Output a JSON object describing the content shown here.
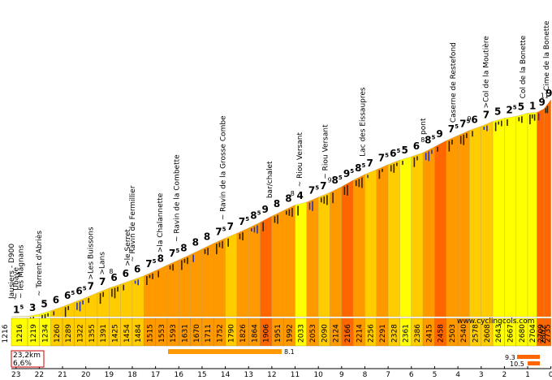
{
  "chart_data": {
    "type": "area",
    "title": "Cime de la Bonette",
    "subtitle": "23,2km 6,6%",
    "summary": {
      "distance_label": "23,2km",
      "avg_grade_label": "6,6%"
    },
    "start_altitude": 1216,
    "end_altitude": 2802,
    "website": "www.cyclingcols.com",
    "x_ticks": [
      23,
      22,
      21,
      20,
      19,
      18,
      17,
      16,
      15,
      14,
      13,
      12,
      11,
      10,
      9,
      8,
      7,
      6,
      5,
      4,
      3,
      2,
      1,
      0
    ],
    "segments": [
      {
        "km": 23.2,
        "alt": 1216,
        "grade": "1.5",
        "color": "#ffff00"
      },
      {
        "km": 22.5,
        "alt": 1219,
        "grade": "3",
        "color": "#ffff00"
      },
      {
        "km": 22.0,
        "alt": 1234,
        "grade": "5",
        "color": "#ffff00"
      },
      {
        "km": 21.5,
        "alt": 1260,
        "grade": "6",
        "color": "#ffcc00"
      },
      {
        "km": 21.0,
        "alt": 1289,
        "grade": "6.5",
        "color": "#ffcc00"
      },
      {
        "km": 20.5,
        "alt": 1322,
        "grade": "6.5",
        "color": "#ffcc00"
      },
      {
        "km": 20.0,
        "alt": 1355,
        "grade": "7",
        "color": "#ffcc00"
      },
      {
        "km": 19.5,
        "alt": 1391,
        "grade": "7",
        "color": "#ffcc00"
      },
      {
        "km": 19.0,
        "alt": 1425,
        "grade": "6",
        "color": "#ffcc00"
      },
      {
        "km": 18.5,
        "alt": 1454,
        "grade": "6",
        "color": "#ffcc00"
      },
      {
        "km": 18.0,
        "alt": 1484,
        "grade": "6",
        "color": "#ffcc00"
      },
      {
        "km": 17.5,
        "alt": 1515,
        "grade": "7.5",
        "color": "#ff9900"
      },
      {
        "km": 17.0,
        "alt": 1553,
        "grade": "8",
        "color": "#ff9900"
      },
      {
        "km": 16.5,
        "alt": 1593,
        "grade": "7.5",
        "color": "#ff9900"
      },
      {
        "km": 16.0,
        "alt": 1631,
        "grade": "8",
        "color": "#ff9900"
      },
      {
        "km": 15.5,
        "alt": 1670,
        "grade": "8",
        "color": "#ff9900"
      },
      {
        "km": 15.0,
        "alt": 1711,
        "grade": "8",
        "color": "#ff9900"
      },
      {
        "km": 14.5,
        "alt": 1752,
        "grade": "7.5",
        "color": "#ff9900"
      },
      {
        "km": 14.0,
        "alt": 1790,
        "grade": "7",
        "color": "#ffcc00"
      },
      {
        "km": 13.5,
        "alt": 1826,
        "grade": "7.5",
        "color": "#ff9900"
      },
      {
        "km": 13.0,
        "alt": 1864,
        "grade": "8.5",
        "color": "#ff9900"
      },
      {
        "km": 12.5,
        "alt": 1906,
        "grade": "9",
        "color": "#ff6600"
      },
      {
        "km": 12.0,
        "alt": 1951,
        "grade": "8",
        "color": "#ff9900"
      },
      {
        "km": 11.5,
        "alt": 1992,
        "grade": "8",
        "color": "#ff9900"
      },
      {
        "km": 11.0,
        "alt": 2033,
        "grade": "4",
        "color": "#ffff00"
      },
      {
        "km": 10.5,
        "alt": 2053,
        "grade": "7.5",
        "color": "#ff9900"
      },
      {
        "km": 10.0,
        "alt": 2090,
        "grade": "7",
        "color": "#ffcc00"
      },
      {
        "km": 9.5,
        "alt": 2124,
        "grade": "8.5",
        "color": "#ff9900"
      },
      {
        "km": 9.0,
        "alt": 2166,
        "grade": "9.5",
        "color": "#ff6600"
      },
      {
        "km": 8.5,
        "alt": 2214,
        "grade": "8.5",
        "color": "#ff9900"
      },
      {
        "km": 8.0,
        "alt": 2256,
        "grade": "7",
        "color": "#ffcc00"
      },
      {
        "km": 7.5,
        "alt": 2291,
        "grade": "7.5",
        "color": "#ff9900"
      },
      {
        "km": 7.0,
        "alt": 2328,
        "grade": "6.5",
        "color": "#ffcc00"
      },
      {
        "km": 6.5,
        "alt": 2361,
        "grade": "5",
        "color": "#ffff00"
      },
      {
        "km": 6.0,
        "alt": 2386,
        "grade": "6",
        "color": "#ffcc00"
      },
      {
        "km": 5.5,
        "alt": 2415,
        "grade": "8.5",
        "color": "#ff9900"
      },
      {
        "km": 5.0,
        "alt": 2458,
        "grade": "9",
        "color": "#ff6600"
      },
      {
        "km": 4.5,
        "alt": 2503,
        "grade": "7.5",
        "color": "#ff9900"
      },
      {
        "km": 4.0,
        "alt": 2540,
        "grade": "7.5",
        "color": "#ff9900"
      },
      {
        "km": 3.5,
        "alt": 2578,
        "grade": "6",
        "color": "#ffcc00"
      },
      {
        "km": 3.0,
        "alt": 2608,
        "grade": "7",
        "color": "#ffcc00"
      },
      {
        "km": 2.5,
        "alt": 2643,
        "grade": "5",
        "color": "#ffff00"
      },
      {
        "km": 2.0,
        "alt": 2667,
        "grade": "2.5",
        "color": "#ffff00"
      },
      {
        "km": 1.5,
        "alt": 2680,
        "grade": "5",
        "color": "#ffff00"
      },
      {
        "km": 1.0,
        "alt": 2704,
        "grade": "1",
        "color": "#ffff00"
      },
      {
        "km": 0.6,
        "alt": 2709,
        "grade": "9",
        "color": "#ff6600"
      },
      {
        "km": 0.3,
        "alt": 2735,
        "grade": "9.5",
        "color": "#ff6600"
      }
    ],
    "max_grade_markers": [
      {
        "km": 19.0,
        "value": "8"
      },
      {
        "km": 11.2,
        "value": "8"
      },
      {
        "km": 9.6,
        "value": "9"
      },
      {
        "km": 5.6,
        "value": "8"
      },
      {
        "km": 3.6,
        "value": "9"
      },
      {
        "km": 0.45,
        "value": "11"
      }
    ],
    "annotations": [
      {
        "km": 23.1,
        "text": "Jausiers - D900"
      },
      {
        "km": 22.9,
        "text": "~ Ubaye"
      },
      {
        "km": 22.7,
        "text": "~ les Magnans"
      },
      {
        "km": 21.9,
        "text": "~ Torrent d'Abriès"
      },
      {
        "km": 19.7,
        "text": ">Les Buissons"
      },
      {
        "km": 19.2,
        "text": ">Lans"
      },
      {
        "km": 18.1,
        "text": ">le Serret"
      },
      {
        "km": 17.9,
        "text": "~ Ravin de Fermillier"
      },
      {
        "km": 16.7,
        "text": ">la Chalannette"
      },
      {
        "km": 16.0,
        "text": "~ Ravin de la Combette"
      },
      {
        "km": 14.0,
        "text": "~ Ravin de la Grosse Combe"
      },
      {
        "km": 12.0,
        "text": "bar/chalet"
      },
      {
        "km": 10.7,
        "text": "~ Riou Versant"
      },
      {
        "km": 9.6,
        "text": "~ Riou Versant"
      },
      {
        "km": 8.0,
        "text": "Lac des Eissaupres"
      },
      {
        "km": 5.4,
        "text": "pont"
      },
      {
        "km": 4.1,
        "text": "Caserne de Restefond"
      },
      {
        "km": 2.7,
        "text": ">Col de la Moutière"
      },
      {
        "km": 1.1,
        "text": "Col de la Bonette"
      },
      {
        "km": 0.1,
        "text": "Cime de la Bonette"
      }
    ],
    "steepest_bars": [
      {
        "label": "8.1",
        "color": "#ff9900"
      },
      {
        "label": "9.3",
        "color": "#ff6600"
      },
      {
        "label": "10.5",
        "color": "#ff6600"
      }
    ]
  }
}
